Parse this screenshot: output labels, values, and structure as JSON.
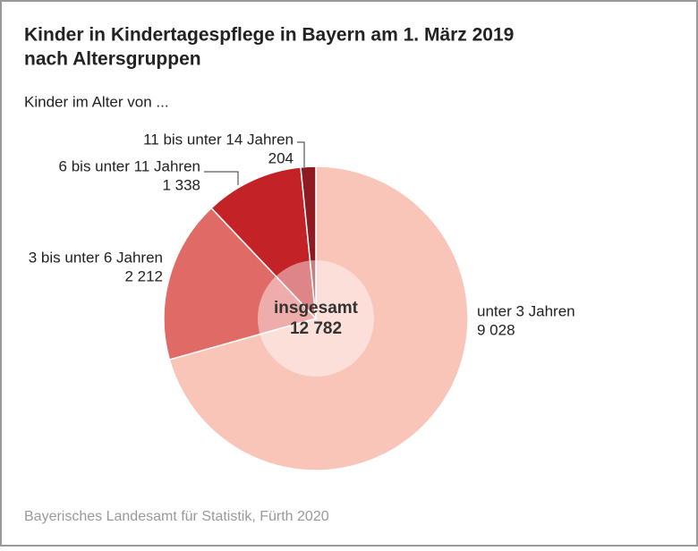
{
  "chart_data": {
    "type": "pie",
    "title": [
      "Kinder in Kindertagespflege in Bayern am 1. März 2019",
      "nach Altersgruppen"
    ],
    "subtitle": "Kinder im Alter von ...",
    "categories": [
      "unter 3 Jahren",
      "3 bis unter 6 Jahren",
      "6 bis unter 11 Jahren",
      "11 bis unter 14 Jahren"
    ],
    "values": [
      9028,
      2212,
      1338,
      204
    ],
    "value_labels": [
      "9 028",
      "2 212",
      "1 338",
      "204"
    ],
    "colors": [
      "#f8c5b8",
      "#e06a65",
      "#c32226",
      "#8e1a22"
    ],
    "center_label": "insgesamt",
    "total": {
      "value": 12782,
      "label": "12 782"
    },
    "source": "Bayerisches Landesamt für Statistik, Fürth 2020"
  }
}
